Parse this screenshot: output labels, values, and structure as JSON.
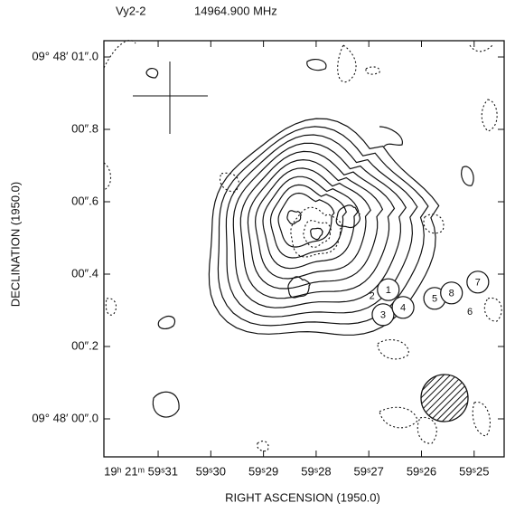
{
  "chart_data": {
    "type": "contour",
    "title": "Vy2-2",
    "subtitle": "14964.900 MHz",
    "x_label": "RIGHT ASCENSION (1950.0)",
    "y_label": "DECLINATION (1950.0)",
    "xlim": [
      59.3203,
      59.2443
    ],
    "ylim": [
      -0.105,
      1.045
    ],
    "xticks": [
      {
        "value": 59.31,
        "label": "19ʰ 21ᵐ 59ˢ31"
      },
      {
        "value": 59.3,
        "label": "59ˢ30"
      },
      {
        "value": 59.29,
        "label": "59ˢ29"
      },
      {
        "value": 59.28,
        "label": "59ˢ28"
      },
      {
        "value": 59.27,
        "label": "59ˢ27"
      },
      {
        "value": 59.26,
        "label": "59ˢ26"
      },
      {
        "value": 59.25,
        "label": "59ˢ25"
      }
    ],
    "yticks": [
      {
        "value": 0,
        "label": "09° 48′ 00″.0"
      },
      {
        "value": 0.2,
        "label": "00″.2"
      },
      {
        "value": 0.4,
        "label": "00″.4"
      },
      {
        "value": 0.6,
        "label": "00″.6"
      },
      {
        "value": 0.8,
        "label": "00″.8"
      },
      {
        "value": 1.0,
        "label": "09° 48′ 01″.0"
      }
    ],
    "spots": [
      {
        "label": "1",
        "x": 59.2663,
        "y": 0.357
      },
      {
        "label": "3",
        "x": 59.2673,
        "y": 0.288
      },
      {
        "label": "4",
        "x": 59.2635,
        "y": 0.308
      },
      {
        "label": "5",
        "x": 59.2575,
        "y": 0.333
      },
      {
        "label": "8",
        "x": 59.2543,
        "y": 0.348
      },
      {
        "label": "7",
        "x": 59.2493,
        "y": 0.378
      }
    ],
    "spot_labels": [
      {
        "label": "2",
        "x": 59.2694,
        "y": 0.338
      },
      {
        "label": "6",
        "x": 59.2508,
        "y": 0.295
      }
    ]
  }
}
